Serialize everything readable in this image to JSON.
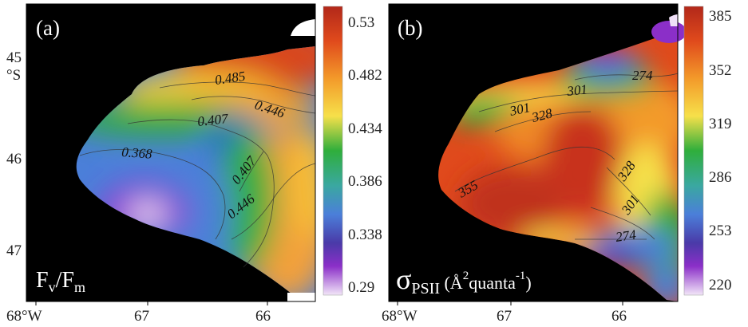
{
  "chart_data": [
    {
      "type": "heatmap",
      "panel": "(a)",
      "parameter_label": {
        "main": "F",
        "sub1": "v",
        "slash": "/F",
        "sub2": "m"
      },
      "y_ticks": [
        "45",
        "°S",
        "46",
        "47"
      ],
      "x_ticks": [
        "68°W",
        "67",
        "66"
      ],
      "colorbar": {
        "ticks": [
          "0.53",
          "0.482",
          "0.434",
          "0.386",
          "0.338",
          "0.29"
        ],
        "range": [
          0.29,
          0.53
        ]
      },
      "contours": [
        "0.485",
        "0.446",
        "0.407",
        "0.368",
        "0.407",
        "0.446"
      ]
    },
    {
      "type": "heatmap",
      "panel": "(b)",
      "parameter_label": {
        "symbol": "σ",
        "sub": "PSII",
        "unit_open": " (Å",
        "sup1": "2",
        "unit_mid": "quanta",
        "sup2": "-1",
        "unit_close": ")"
      },
      "x_ticks": [
        "68°W",
        "67",
        "66"
      ],
      "colorbar": {
        "ticks": [
          "385",
          "352",
          "319",
          "286",
          "253",
          "220"
        ],
        "range": [
          220,
          385
        ]
      },
      "contours": [
        "274",
        "301",
        "301",
        "328",
        "355",
        "328",
        "301",
        "274"
      ]
    }
  ]
}
